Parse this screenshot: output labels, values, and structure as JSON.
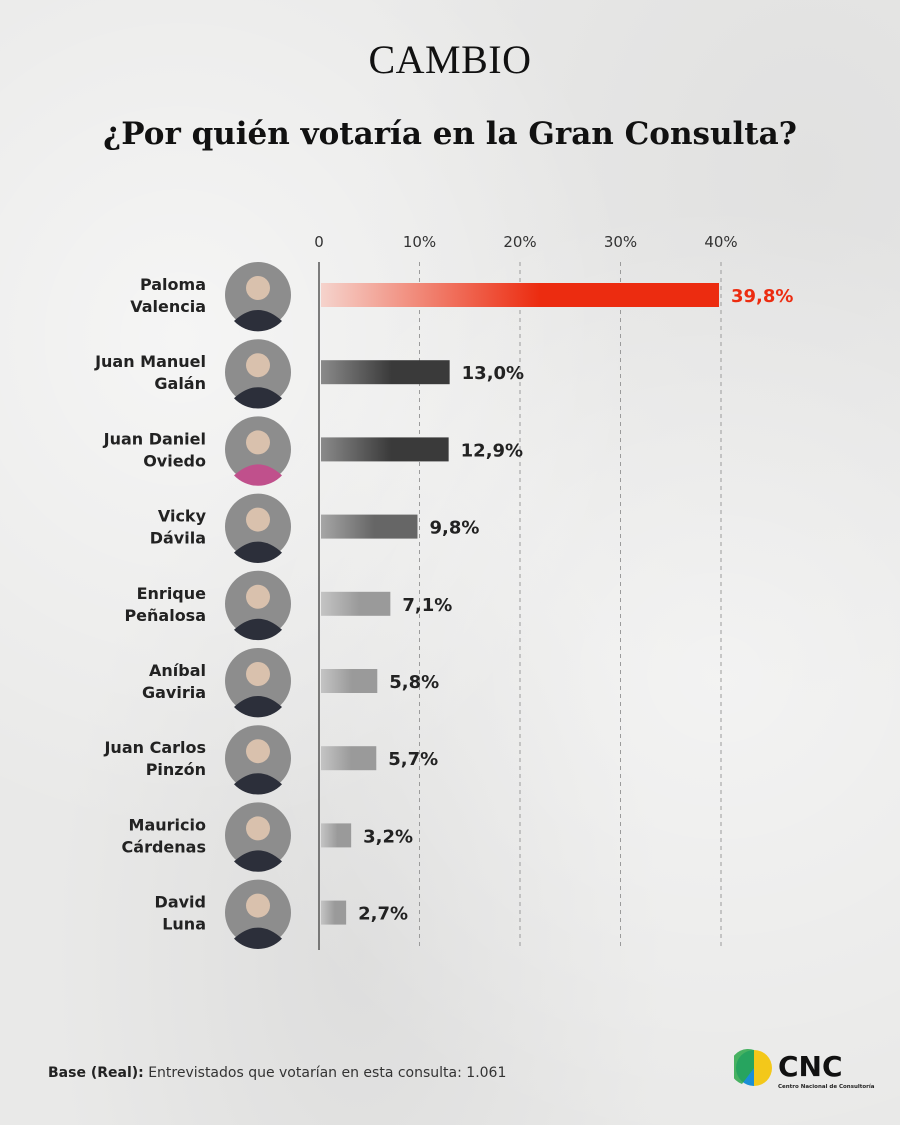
{
  "header": {
    "brand": "CAMBIO",
    "title": "¿Por quién votaría en la Gran Consulta?"
  },
  "chart_data": {
    "type": "bar",
    "orientation": "horizontal",
    "title": "¿Por quién votaría en la Gran Consulta?",
    "xlim": [
      0,
      40
    ],
    "x_ticks": [
      "0",
      "10%",
      "20%",
      "30%",
      "40%"
    ],
    "grid": true,
    "categories": [
      [
        "Paloma",
        "Valencia"
      ],
      [
        "Juan Manuel",
        "Galán"
      ],
      [
        "Juan Daniel",
        "Oviedo"
      ],
      [
        "Vicky",
        "Dávila"
      ],
      [
        "Enrique",
        "Peñalosa"
      ],
      [
        "Aníbal",
        "Gaviria"
      ],
      [
        "Juan Carlos",
        "Pinzón"
      ],
      [
        "Mauricio",
        "Cárdenas"
      ],
      [
        "David",
        "Luna"
      ]
    ],
    "values": [
      39.8,
      13.0,
      12.9,
      9.8,
      7.1,
      5.8,
      5.7,
      3.2,
      2.7
    ],
    "value_labels": [
      "39,8%",
      "13,0%",
      "12,9%",
      "9,8%",
      "7,1%",
      "5,8%",
      "5,7%",
      "3,2%",
      "2,7%"
    ],
    "colors": {
      "highlight": "#ec2c10",
      "bar_dark": "#3a3a3a",
      "bar_mid": "#666666",
      "bar_light": "#9a9a9a"
    }
  },
  "footer": {
    "base_label": "Base (Real):",
    "base_text": " Entrevistados que votarían en esta consulta: 1.061"
  },
  "logo": {
    "name": "CNC",
    "subtitle": "Centro Nacional de Consultoría"
  }
}
